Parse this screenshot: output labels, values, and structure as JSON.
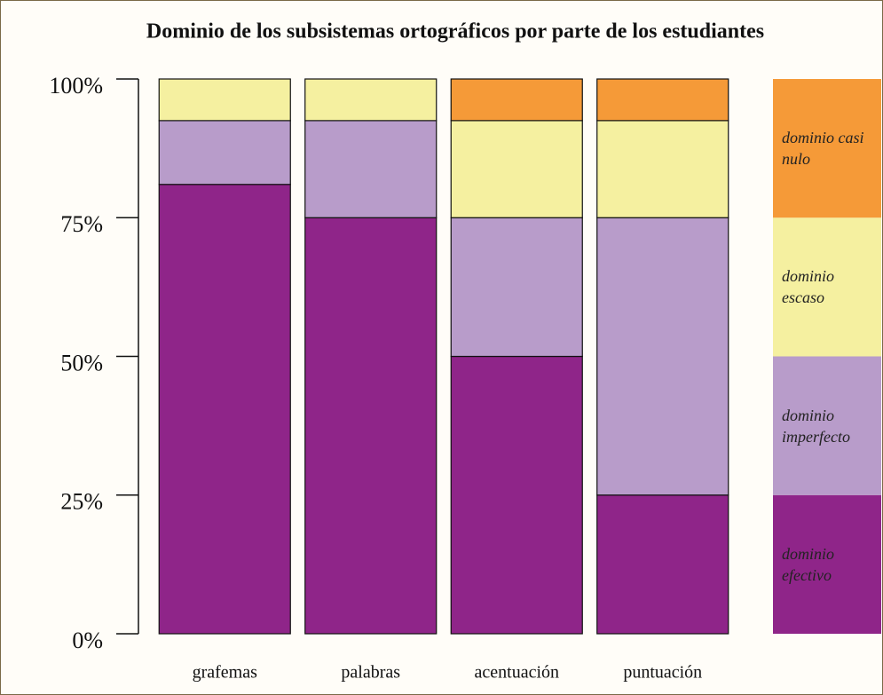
{
  "chart_data": {
    "type": "stacked_bar",
    "title": "Dominio de los subsistemas ortográficos por parte de los estudiantes",
    "categories": [
      "grafemas",
      "palabras",
      "acentuación",
      "puntuación"
    ],
    "series": [
      {
        "name": "dominio efectivo",
        "color": "#8f2589",
        "values": [
          81,
          75,
          50,
          25
        ]
      },
      {
        "name": "dominio imperfecto",
        "color": "#b89cca",
        "values": [
          11.5,
          17.5,
          25,
          50
        ]
      },
      {
        "name": "dominio escaso",
        "color": "#f5f0a0",
        "values": [
          7.5,
          7.5,
          17.5,
          17.5
        ]
      },
      {
        "name": "dominio casi nulo",
        "color": "#f59a38",
        "values": [
          0,
          0,
          7.5,
          7.5
        ]
      }
    ],
    "ylim": [
      0,
      100
    ],
    "yticks": [
      {
        "value": 0,
        "label": "0%"
      },
      {
        "value": 25,
        "label": "25%"
      },
      {
        "value": 50,
        "label": "50%"
      },
      {
        "value": 75,
        "label": "75%"
      },
      {
        "value": 100,
        "label": "100%"
      }
    ]
  }
}
